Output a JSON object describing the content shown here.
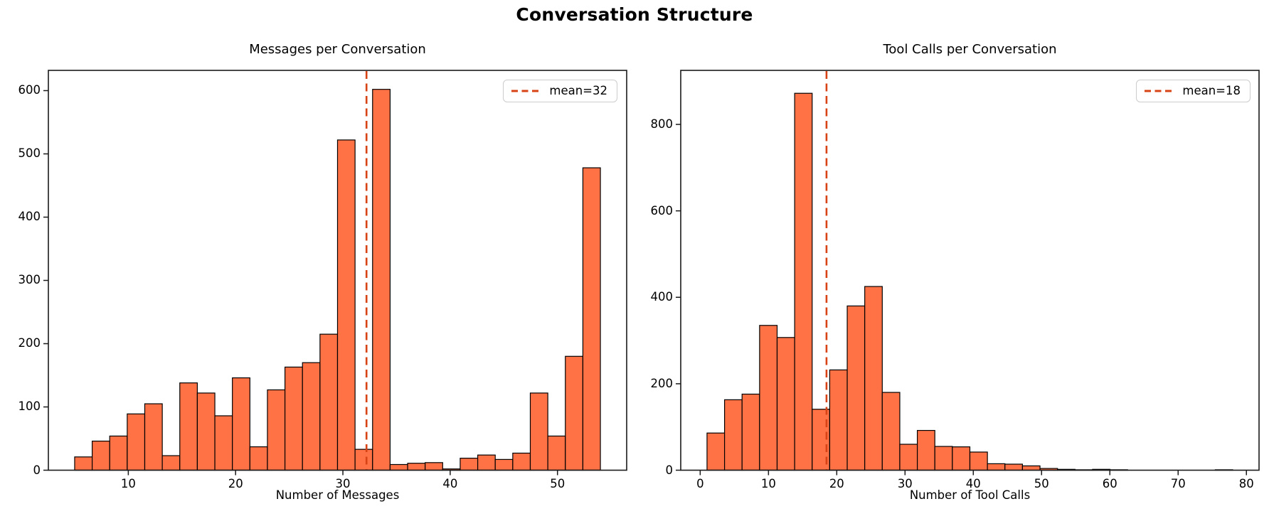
{
  "figure": {
    "title": "Conversation Structure"
  },
  "colors": {
    "bar_fill": "#ff7246",
    "bar_edge": "#000000",
    "mean_line": "#d84315",
    "spine": "#1a1a1a",
    "legend_border": "#cccccc"
  },
  "chart_data": [
    {
      "type": "bar",
      "subtype": "histogram",
      "title": "Messages per Conversation",
      "xlabel": "Number of Messages",
      "ylabel": "",
      "legend_label": "mean=32",
      "legend_position": "upper right",
      "grid": false,
      "mean_line_x": 32.2,
      "bin_start": 5,
      "bin_end": 54,
      "bin_count": 30,
      "counts": [
        21,
        46,
        54,
        89,
        105,
        23,
        138,
        122,
        86,
        146,
        37,
        127,
        163,
        170,
        215,
        522,
        33,
        602,
        9,
        11,
        12,
        2,
        19,
        24,
        17,
        27,
        122,
        54,
        180,
        478
      ],
      "xticks": [
        10,
        20,
        30,
        40,
        50
      ],
      "yticks": [
        0,
        100,
        200,
        300,
        400,
        500,
        600
      ],
      "xlim": [
        2.55,
        56.45
      ],
      "ylim": [
        0,
        632
      ]
    },
    {
      "type": "bar",
      "subtype": "histogram",
      "title": "Tool Calls per Conversation",
      "xlabel": "Number of Tool Calls",
      "ylabel": "",
      "legend_label": "mean=18",
      "legend_position": "upper right",
      "grid": false,
      "mean_line_x": 18.5,
      "bin_start": 1,
      "bin_end": 78,
      "bin_count": 30,
      "counts": [
        86,
        163,
        176,
        335,
        307,
        872,
        141,
        232,
        380,
        425,
        180,
        60,
        92,
        55,
        54,
        42,
        15,
        14,
        10,
        4,
        2,
        1,
        2,
        1,
        0,
        0,
        0,
        0,
        0,
        1
      ],
      "xticks": [
        0,
        10,
        20,
        30,
        40,
        50,
        60,
        70,
        80
      ],
      "yticks": [
        0,
        200,
        400,
        600,
        800
      ],
      "xlim": [
        -2.85,
        81.85
      ],
      "ylim": [
        0,
        925
      ]
    }
  ]
}
